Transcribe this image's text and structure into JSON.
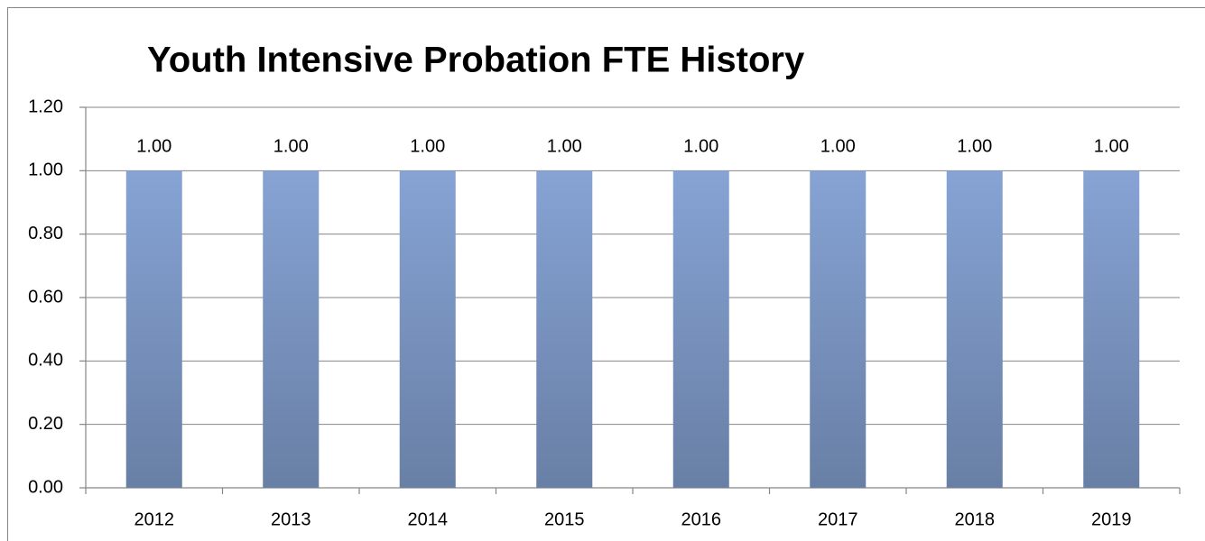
{
  "chart_data": {
    "type": "bar",
    "title": "Youth Intensive Probation FTE History",
    "categories": [
      "2012",
      "2013",
      "2014",
      "2015",
      "2016",
      "2017",
      "2018",
      "2019"
    ],
    "values": [
      1,
      1,
      1,
      1,
      1,
      1,
      1,
      1
    ],
    "value_labels": [
      "1.00",
      "1.00",
      "1.00",
      "1.00",
      "1.00",
      "1.00",
      "1.00",
      "1.00"
    ],
    "color": "#86a3d4",
    "ylim": [
      0,
      1.2
    ],
    "yticks": [
      {
        "value": 0,
        "label": "0.00"
      },
      {
        "value": 0.2,
        "label": "0.20"
      },
      {
        "value": 0.4,
        "label": "0.40"
      },
      {
        "value": 0.6,
        "label": "0.60"
      },
      {
        "value": 0.8,
        "label": "0.80"
      },
      {
        "value": 1,
        "label": "1.00"
      },
      {
        "value": 1.2,
        "label": "1.20"
      }
    ],
    "grid": true
  }
}
